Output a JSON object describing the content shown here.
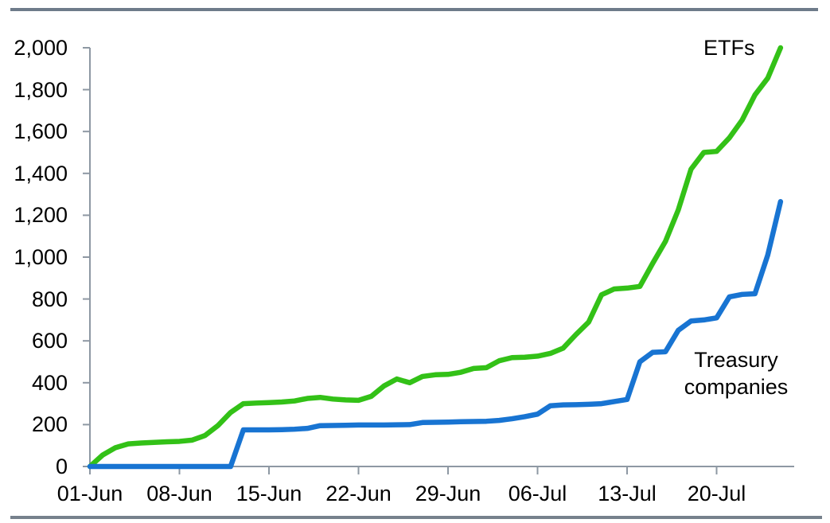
{
  "page": {
    "background": "#FFFFFF"
  },
  "colors": {
    "etfs_line": "#33C117",
    "treasury_line": "#1874D2",
    "axis": "#8E98A3",
    "top_rule": "#6E7B8A",
    "bottom_rule": "#76818C",
    "label_text": "#000000"
  },
  "annotations": {
    "etfs_label": "ETFs",
    "treasury_label": "Treasury\ncompanies"
  },
  "chart_data": {
    "type": "line",
    "x": [
      "01-Jun",
      "02-Jun",
      "03-Jun",
      "04-Jun",
      "05-Jun",
      "06-Jun",
      "07-Jun",
      "08-Jun",
      "09-Jun",
      "10-Jun",
      "11-Jun",
      "12-Jun",
      "13-Jun",
      "14-Jun",
      "15-Jun",
      "16-Jun",
      "17-Jun",
      "18-Jun",
      "19-Jun",
      "20-Jun",
      "21-Jun",
      "22-Jun",
      "23-Jun",
      "24-Jun",
      "25-Jun",
      "26-Jun",
      "27-Jun",
      "28-Jun",
      "29-Jun",
      "30-Jun",
      "01-Jul",
      "02-Jul",
      "03-Jul",
      "04-Jul",
      "05-Jul",
      "06-Jul",
      "07-Jul",
      "08-Jul",
      "09-Jul",
      "10-Jul",
      "11-Jul",
      "12-Jul",
      "13-Jul",
      "14-Jul",
      "15-Jul",
      "16-Jul",
      "17-Jul",
      "18-Jul",
      "19-Jul",
      "20-Jul",
      "21-Jul",
      "22-Jul",
      "23-Jul",
      "24-Jul",
      "25-Jul"
    ],
    "series": [
      {
        "name": "ETFs",
        "color": "#33C117",
        "values": [
          0,
          55,
          90,
          108,
          112,
          115,
          118,
          120,
          126,
          148,
          195,
          258,
          300,
          303,
          305,
          308,
          313,
          325,
          330,
          322,
          318,
          316,
          335,
          385,
          418,
          400,
          430,
          438,
          440,
          450,
          468,
          472,
          505,
          520,
          522,
          527,
          540,
          565,
          630,
          690,
          820,
          848,
          852,
          860,
          970,
          1075,
          1225,
          1420,
          1500,
          1505,
          1570,
          1655,
          1775,
          1855,
          2000
        ]
      },
      {
        "name": "Treasury companies",
        "color": "#1874D2",
        "values": [
          0,
          0,
          0,
          0,
          0,
          0,
          0,
          0,
          0,
          0,
          0,
          0,
          175,
          175,
          175,
          176,
          178,
          182,
          195,
          196,
          197,
          198,
          198,
          198,
          199,
          200,
          210,
          211,
          212,
          214,
          215,
          216,
          220,
          228,
          238,
          250,
          290,
          294,
          295,
          297,
          300,
          310,
          320,
          500,
          545,
          548,
          650,
          695,
          700,
          710,
          810,
          822,
          825,
          1010,
          1265
        ]
      }
    ],
    "x_tick_labels": [
      "01-Jun",
      "08-Jun",
      "15-Jun",
      "22-Jun",
      "29-Jun",
      "06-Jul",
      "13-Jul",
      "20-Jul"
    ],
    "y_tick_labels": [
      "0",
      "200",
      "400",
      "600",
      "800",
      "1,000",
      "1,200",
      "1,400",
      "1,600",
      "1,800",
      "2,000"
    ],
    "ylim": [
      0,
      2000
    ],
    "y_tick_step": 200,
    "grid": false,
    "legend_position": "inline-annotations"
  }
}
